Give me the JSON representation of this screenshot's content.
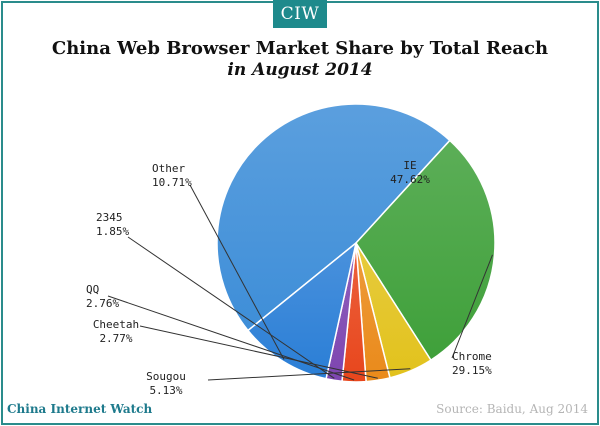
{
  "brand": {
    "logo_text": "CIW",
    "footer_brand": "China Internet Watch"
  },
  "source": "Source: Baidu, Aug 2014",
  "chart_data": {
    "type": "pie",
    "title": "China Web Browser Market Share by Total Reach",
    "subtitle": "in August 2014",
    "slices": [
      {
        "name": "IE",
        "value": 47.62,
        "label": "47.62%",
        "color": "#3e8ed8"
      },
      {
        "name": "Chrome",
        "value": 29.15,
        "label": "29.15%",
        "color": "#3fa03a"
      },
      {
        "name": "Sougou",
        "value": 5.13,
        "label": "5.13%",
        "color": "#e2c21c"
      },
      {
        "name": "Cheetah",
        "value": 2.77,
        "label": "2.77%",
        "color": "#ea8a1a"
      },
      {
        "name": "QQ",
        "value": 2.76,
        "label": "2.76%",
        "color": "#e8461c"
      },
      {
        "name": "2345",
        "value": 1.85,
        "label": "1.85%",
        "color": "#7d45b0"
      },
      {
        "name": "Other",
        "value": 10.71,
        "label": "10.71%",
        "color": "#2a7ed6"
      }
    ]
  }
}
